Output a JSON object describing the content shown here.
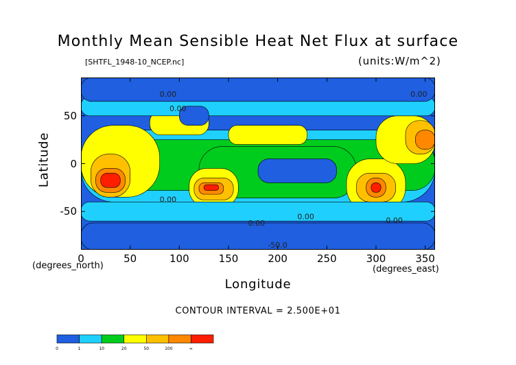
{
  "chart_data": {
    "type": "heatmap",
    "title": "Monthly Mean Sensible Heat Net Flux at surface",
    "subtitle_left": "[SHTFL_1948-10_NCEP.nc]",
    "subtitle_right": "(units:W/m^2)",
    "xlabel": "Longitude",
    "ylabel": "Latitude",
    "x_unit_label": "(degrees_east)",
    "y_unit_label": "(degrees_north)",
    "xlim": [
      0,
      360
    ],
    "ylim": [
      -90,
      90
    ],
    "x_ticks": [
      0,
      50,
      100,
      150,
      200,
      250,
      300,
      350
    ],
    "y_ticks": [
      50,
      0,
      -50
    ],
    "contour_interval_text": "CONTOUR INTERVAL = 2.500E+01",
    "contour_labels": [
      "0.00",
      "0.00",
      "0.00",
      "0.00",
      "0.00",
      "0.00",
      "0.00",
      "-50.0"
    ],
    "colorbar": {
      "bins": [
        "0",
        "1",
        "10",
        "20",
        "50",
        "100",
        "∞"
      ],
      "colors": [
        "#1f5fe0",
        "#1fd0ff",
        "#00cc1e",
        "#ffff00",
        "#ffc000",
        "#ff8800",
        "#ff1e00"
      ],
      "label_values": [
        "0",
        "1",
        "10",
        "20",
        "50",
        "100",
        "∞"
      ]
    },
    "base_color": "#1f5fe0",
    "field_regions": [
      {
        "level": 1,
        "lon": [
          0,
          360
        ],
        "lat": [
          -40,
          35
        ]
      },
      {
        "level": 2,
        "lon": [
          0,
          360
        ],
        "lat": [
          -28,
          25
        ]
      },
      {
        "level": 2,
        "lon": [
          120,
          280
        ],
        "lat": [
          -36,
          18
        ]
      },
      {
        "level": 3,
        "lon": [
          0,
          80
        ],
        "lat": [
          -35,
          40
        ]
      },
      {
        "level": 3,
        "lon": [
          110,
          160
        ],
        "lat": [
          -45,
          -5
        ]
      },
      {
        "level": 3,
        "lon": [
          270,
          330
        ],
        "lat": [
          -50,
          5
        ]
      },
      {
        "level": 3,
        "lon": [
          300,
          360
        ],
        "lat": [
          0,
          50
        ]
      },
      {
        "level": 3,
        "lon": [
          70,
          130
        ],
        "lat": [
          30,
          55
        ]
      },
      {
        "level": 3,
        "lon": [
          150,
          230
        ],
        "lat": [
          20,
          40
        ]
      },
      {
        "level": 4,
        "lon": [
          10,
          50
        ],
        "lat": [
          -35,
          10
        ]
      },
      {
        "level": 4,
        "lon": [
          115,
          155
        ],
        "lat": [
          -38,
          -15
        ]
      },
      {
        "level": 4,
        "lon": [
          280,
          320
        ],
        "lat": [
          -40,
          -10
        ]
      },
      {
        "level": 4,
        "lon": [
          330,
          360
        ],
        "lat": [
          10,
          45
        ]
      },
      {
        "level": 5,
        "lon": [
          15,
          45
        ],
        "lat": [
          -30,
          -5
        ]
      },
      {
        "level": 5,
        "lon": [
          120,
          145
        ],
        "lat": [
          -32,
          -20
        ]
      },
      {
        "level": 5,
        "lon": [
          290,
          310
        ],
        "lat": [
          -35,
          -15
        ]
      },
      {
        "level": 5,
        "lon": [
          340,
          360
        ],
        "lat": [
          15,
          35
        ]
      },
      {
        "level": 6,
        "lon": [
          20,
          40
        ],
        "lat": [
          -25,
          -10
        ]
      },
      {
        "level": 6,
        "lon": [
          125,
          140
        ],
        "lat": [
          -28,
          -22
        ]
      },
      {
        "level": 6,
        "lon": [
          295,
          305
        ],
        "lat": [
          -30,
          -20
        ]
      },
      {
        "level": 1,
        "lon": [
          0,
          360
        ],
        "lat": [
          50,
          70
        ]
      },
      {
        "level": 1,
        "lon": [
          0,
          360
        ],
        "lat": [
          -60,
          -40
        ]
      },
      {
        "level": 0,
        "lon": [
          0,
          360
        ],
        "lat": [
          -90,
          -62
        ]
      },
      {
        "level": 0,
        "lon": [
          0,
          360
        ],
        "lat": [
          65,
          90
        ]
      },
      {
        "level": 0,
        "lon": [
          180,
          260
        ],
        "lat": [
          -20,
          5
        ]
      },
      {
        "level": 0,
        "lon": [
          100,
          130
        ],
        "lat": [
          40,
          60
        ]
      }
    ]
  }
}
